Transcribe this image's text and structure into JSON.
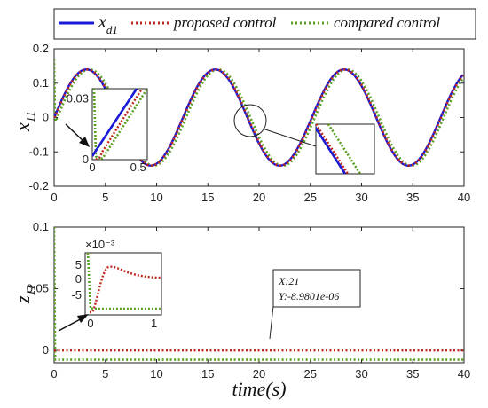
{
  "colors": {
    "xd1": "#1a1ad6",
    "proposed": "#c0281e",
    "compared": "#58a020"
  },
  "legend": {
    "xd1_main": "x",
    "xd1_sub": "d1",
    "proposed": "proposed control",
    "compared": "compared control"
  },
  "xlabel": "time(s)",
  "chart_data": [
    {
      "type": "line",
      "title": "",
      "ylabel_main": "x",
      "ylabel_sub": "11",
      "xlim": [
        0,
        40
      ],
      "ylim": [
        -0.2,
        0.2
      ],
      "x_ticks": [
        "0",
        "5",
        "10",
        "15",
        "20",
        "25",
        "30",
        "35",
        "40"
      ],
      "y_ticks": [
        "-0.2",
        "-0.1",
        "0",
        "0.1",
        "0.2"
      ],
      "grid": false,
      "legend_position": "top",
      "series": [
        {
          "name": "x_d1",
          "color": "#1a1ad6",
          "style": "solid",
          "function": "0.14*sin(0.5*t)",
          "amplitude": 0.14,
          "period": 12.57,
          "phase_lag": 0
        },
        {
          "name": "proposed control",
          "color": "#c0281e",
          "style": "dotted",
          "amplitude": 0.14,
          "period": 12.57,
          "phase_lag": 0.05
        },
        {
          "name": "compared control",
          "color": "#58a020",
          "style": "dotted",
          "amplitude": 0.14,
          "period": 12.57,
          "phase_lag": 0.3
        }
      ],
      "inset": {
        "xlim": [
          0,
          0.6
        ],
        "ylim": [
          0,
          0.035
        ],
        "x_ticks": [
          "0",
          "0.5"
        ],
        "y_ticks": [
          "0",
          "0.03"
        ]
      },
      "zoom_marker": {
        "x": 18.7,
        "y": 0
      }
    },
    {
      "type": "line",
      "title": "",
      "ylabel_main": "z",
      "ylabel_sub": "11",
      "xlim": [
        0,
        40
      ],
      "ylim": [
        -0.01,
        0.1
      ],
      "x_ticks": [
        "0",
        "5",
        "10",
        "15",
        "20",
        "25",
        "30",
        "35",
        "40"
      ],
      "y_ticks": [
        "0",
        "0.05",
        "0.1"
      ],
      "grid": false,
      "series": [
        {
          "name": "proposed control",
          "color": "#c0281e",
          "style": "dotted",
          "steady_value": -8.9801e-06
        },
        {
          "name": "compared control",
          "color": "#58a020",
          "style": "dotted",
          "initial_value": 0.1,
          "steady_value": -0.0075
        }
      ],
      "inset": {
        "xlim": [
          0,
          1.2
        ],
        "ylim": [
          -0.008,
          0.005
        ],
        "x_ticks": [
          "0",
          "1"
        ],
        "y_ticks": [
          "5",
          "0",
          "-5"
        ],
        "exponent": "×10⁻³"
      },
      "datatip": {
        "x": 21,
        "y": -8.9801e-06,
        "line1": "X:21",
        "line2": "Y:-8.9801e-06"
      }
    }
  ]
}
